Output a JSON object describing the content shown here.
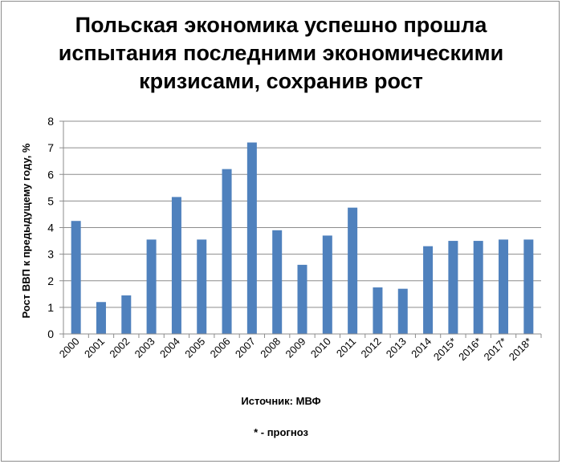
{
  "chart_data": {
    "type": "bar",
    "title_lines": [
      "Польская экономика успешно прошла",
      "испытания последними экономическими",
      "кризисами, сохранив рост"
    ],
    "xlabel": "",
    "ylabel": "Рост ВВП к предыдущему году, %",
    "categories": [
      "2000",
      "2001",
      "2002",
      "2003",
      "2004",
      "2005",
      "2006",
      "2007",
      "2008",
      "2009",
      "2010",
      "2011",
      "2012",
      "2013",
      "2014",
      "2015*",
      "2016*",
      "2017*",
      "2018*"
    ],
    "values": [
      4.25,
      1.2,
      1.45,
      3.55,
      5.15,
      3.55,
      6.2,
      7.2,
      3.9,
      2.6,
      3.7,
      4.75,
      1.75,
      1.7,
      3.3,
      3.5,
      3.5,
      3.55,
      3.55
    ],
    "ylim": [
      0,
      8
    ],
    "yticks": [
      0,
      1,
      2,
      3,
      4,
      5,
      6,
      7,
      8
    ],
    "grid": true,
    "legend": "none",
    "bar_color": "#4f81bd",
    "grid_color": "#8c8c8c"
  },
  "footer": {
    "source": "Источник: МВФ",
    "note": "* - прогноз"
  }
}
